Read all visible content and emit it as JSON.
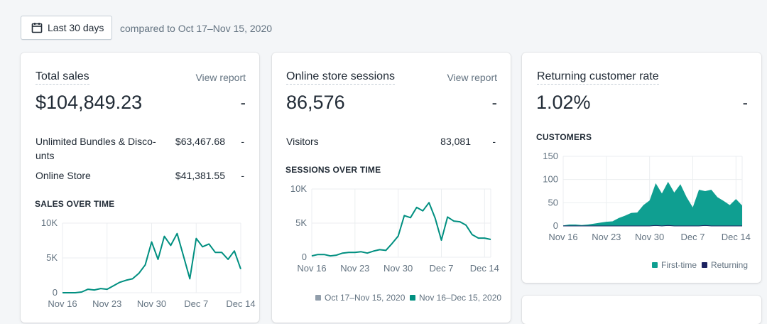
{
  "header": {
    "date_range_label": "Last 30 days",
    "compare_text": "compared to Oct 17–Nov 15, 2020",
    "calendar_icon": "calendar-icon"
  },
  "colors": {
    "teal": "#008f80",
    "teal_area": "#0f9f91",
    "navy": "#1c2260",
    "grey": "#919eab",
    "text": "#212b36",
    "muted": "#637381"
  },
  "total_sales": {
    "title": "Total sales",
    "link": "View report",
    "value": "$104,849.23",
    "change": "-",
    "rows": [
      {
        "label": "Unlimited Bundles & Disco­unts",
        "value": "$63,467.68",
        "change": "-"
      },
      {
        "label": "Online Store",
        "value": "$41,381.55",
        "change": "-"
      }
    ],
    "chart_title": "SALES OVER TIME"
  },
  "sessions": {
    "title": "Online store sessions",
    "link": "View report",
    "value": "86,576",
    "change": "-",
    "rows": [
      {
        "label": "Visitors",
        "value": "83,081",
        "change": "-"
      }
    ],
    "chart_title": "SESSIONS OVER TIME",
    "legend": [
      "Oct 17–Nov 15, 2020",
      "Nov 16–Dec 15, 2020"
    ]
  },
  "returning": {
    "title": "Returning customer rate",
    "value": "1.02%",
    "change": "-",
    "chart_title": "CUSTOMERS",
    "legend": [
      "First-time",
      "Returning"
    ]
  },
  "chart_data": [
    {
      "type": "line",
      "title": "SALES OVER TIME",
      "x_ticks": [
        "Nov 16",
        "Nov 23",
        "Nov 30",
        "Dec 7",
        "Dec 14"
      ],
      "y_ticks": [
        "0",
        "5K",
        "10K"
      ],
      "ylim": [
        0,
        10000
      ],
      "series": [
        {
          "values": [
            0,
            0,
            0,
            100,
            500,
            400,
            600,
            500,
            1000,
            1500,
            1800,
            2000,
            2800,
            4000,
            7300,
            4800,
            8100,
            6800,
            8500,
            5300,
            2000,
            7800,
            6600,
            7000,
            5800,
            5800,
            4800,
            6000,
            3400
          ]
        }
      ]
    },
    {
      "type": "line",
      "title": "SESSIONS OVER TIME",
      "x_ticks": [
        "Nov 16",
        "Nov 23",
        "Nov 30",
        "Dec 7",
        "Dec 14"
      ],
      "y_ticks": [
        "0",
        "5K",
        "10K"
      ],
      "ylim": [
        0,
        10000
      ],
      "series": [
        {
          "name": "Nov 16–Dec 15, 2020",
          "values": [
            200,
            400,
            400,
            200,
            300,
            600,
            700,
            700,
            800,
            600,
            900,
            1100,
            1000,
            2000,
            3100,
            6100,
            5800,
            7300,
            6800,
            8000,
            5700,
            2500,
            5900,
            5300,
            5200,
            4700,
            3300,
            2800,
            2800,
            2600
          ]
        }
      ]
    },
    {
      "type": "area",
      "title": "CUSTOMERS",
      "x_ticks": [
        "Nov 16",
        "Nov 23",
        "Nov 30",
        "Dec 7",
        "Dec 14"
      ],
      "y_ticks": [
        "0",
        "50",
        "100",
        "150"
      ],
      "ylim": [
        0,
        150
      ],
      "series": [
        {
          "name": "First-time",
          "values": [
            1,
            3,
            3,
            2,
            3,
            5,
            7,
            9,
            10,
            17,
            22,
            28,
            29,
            45,
            55,
            92,
            70,
            95,
            72,
            90,
            62,
            40,
            78,
            75,
            78,
            62,
            54,
            45,
            58,
            44
          ]
        },
        {
          "name": "Returning",
          "values": [
            0,
            0,
            0,
            0,
            0,
            0,
            0,
            0,
            0,
            0,
            0,
            0,
            0,
            0,
            0,
            1,
            0,
            1,
            0,
            0,
            0,
            0,
            0,
            1,
            0,
            0,
            0,
            0,
            0,
            0
          ]
        }
      ]
    }
  ]
}
